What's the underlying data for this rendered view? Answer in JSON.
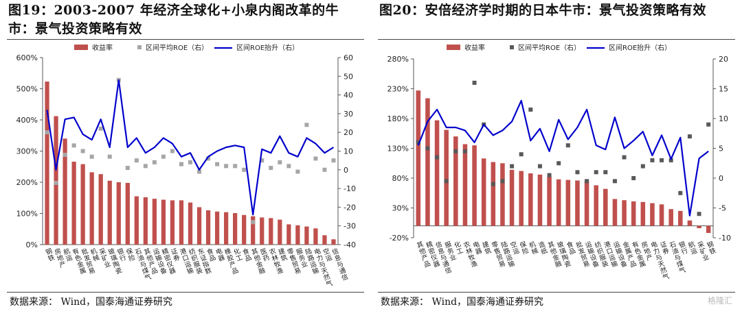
{
  "figures": [
    {
      "title": "图19：2003-2007 年经济全球化+小泉内阁改革的牛市：景气投资策略有效",
      "source": "数据来源： Wind，国泰海通证券研究"
    },
    {
      "title": "图20：安倍经济学时期的日本牛市：景气投资策略有效",
      "source": "数据来源： Wind，国泰海通证券研究"
    }
  ],
  "watermark": "格隆汇",
  "chart_data": [
    {
      "type": "bar",
      "legend": [
        "收益率",
        "区间平均ROE（右）",
        "区间ROE抬升（右）"
      ],
      "legend_position": "top",
      "colors": {
        "bar": "#C0504D",
        "scatter": "#A6A6A6",
        "line": "#0000CC"
      },
      "y_left": {
        "lim": [
          0,
          600
        ],
        "ticks": [
          "0%",
          "100%",
          "200%",
          "300%",
          "400%",
          "500%",
          "600%"
        ]
      },
      "y_right": {
        "lim": [
          -40,
          60
        ],
        "ticks": [
          "-40",
          "-30",
          "-20",
          "-10",
          "0",
          "10",
          "20",
          "30",
          "40",
          "50",
          "60"
        ]
      },
      "categories": [
        "钢铁",
        "房地产",
        "航运",
        "有色金属",
        "批发贸易",
        "机械",
        "采矿业",
        "玻璃陶瓷",
        "银行",
        "保险",
        "石油与煤气",
        "其他产品",
        "运输设备",
        "精密仪器",
        "证券",
        "港口运输",
        "纺织服装",
        "东证指数",
        "食品",
        "电器",
        "橡胶产品",
        "化工",
        "食品",
        "其他金融",
        "医药",
        "农林牧渔",
        "建筑",
        "零售贸易",
        "服务业",
        "陆路运输",
        "电力与天然气",
        "空运",
        "信息与通信"
      ],
      "series": [
        {
          "name": "收益率",
          "axis": "left",
          "values": [
            523,
            412,
            340,
            266,
            258,
            232,
            226,
            205,
            200,
            198,
            155,
            152,
            147,
            144,
            142,
            142,
            135,
            120,
            110,
            106,
            104,
            101,
            95,
            91,
            87,
            85,
            80,
            65,
            62,
            58,
            52,
            30,
            17
          ]
        },
        {
          "name": "区间平均ROE（右）",
          "axis": "right",
          "values": [
            20,
            -7,
            8,
            13,
            10,
            7,
            22,
            7,
            48,
            1,
            5,
            2,
            4,
            7,
            10,
            3,
            4,
            -1,
            6,
            3,
            2,
            2,
            0,
            -28,
            5,
            1,
            4,
            2,
            -1,
            24,
            6,
            0,
            5
          ]
        },
        {
          "name": "区间ROE抬升（右）",
          "axis": "right",
          "values": [
            32,
            0,
            27,
            28,
            19,
            16,
            27,
            12,
            48,
            12,
            17,
            9,
            12,
            17,
            14,
            7,
            9,
            0,
            7,
            10,
            12,
            13,
            12,
            -24,
            11,
            9,
            18,
            9,
            7,
            17,
            14,
            9,
            12
          ]
        }
      ]
    },
    {
      "type": "bar",
      "legend": [
        "收益率",
        "区间平均ROE（右）",
        "区间ROE抬升（右）"
      ],
      "legend_position": "top",
      "colors": {
        "bar": "#C0504D",
        "scatter": "#595959",
        "line": "#0000CC"
      },
      "y_left": {
        "lim": [
          -20,
          280
        ],
        "ticks": [
          "-20%",
          "30%",
          "80%",
          "130%",
          "180%",
          "230%",
          "280%"
        ]
      },
      "y_right": {
        "lim": [
          -10,
          20
        ],
        "ticks": [
          "-10",
          "-5",
          "0",
          "5",
          "10",
          "15",
          "20"
        ]
      },
      "categories": [
        "其他产品",
        "精密仪器",
        "信息与通信",
        "服务业",
        "化工",
        "农林牧渔",
        "电器",
        "建筑",
        "零售贸易",
        "陆路运输",
        "空运",
        "保险",
        "机械",
        "造纸",
        "其他金融",
        "玻璃陶瓷",
        "食品",
        "批发贸易",
        "运输设备",
        "纺织服装",
        "港口运输",
        "运输设备",
        "金属产品",
        "有色金属",
        "房地产",
        "电力与天然气",
        "证券",
        "石油与煤气",
        "银行",
        "航运",
        "采矿业",
        "钢铁"
      ],
      "series": [
        {
          "name": "收益率",
          "axis": "left",
          "values": [
            227,
            214,
            177,
            161,
            150,
            137,
            135,
            113,
            107,
            105,
            94,
            92,
            88,
            86,
            82,
            78,
            77,
            76,
            76,
            68,
            62,
            45,
            43,
            41,
            40,
            38,
            36,
            28,
            25,
            9,
            -4,
            -12
          ]
        },
        {
          "name": "区间平均ROE（右）",
          "axis": "right",
          "values": [
            6,
            5,
            3.5,
            -0.5,
            4.5,
            4.5,
            16,
            9,
            -1,
            -0.5,
            2,
            4,
            11.5,
            2,
            0.5,
            2.5,
            5.5,
            1,
            -0.5,
            1,
            1,
            -0.5,
            3.5,
            0,
            2,
            3,
            3,
            3,
            -2.5,
            7,
            -6,
            9
          ]
        },
        {
          "name": "区间ROE抬升（右）",
          "axis": "right",
          "values": [
            5.5,
            9.5,
            11.5,
            8.5,
            8.5,
            8,
            6,
            9,
            7.2,
            8,
            9.5,
            13,
            6.3,
            8.3,
            4.5,
            9.8,
            6.5,
            8.5,
            11.5,
            5.5,
            4.8,
            10.2,
            5,
            6.3,
            7.8,
            3.8,
            7.2,
            3.2,
            6.8,
            -6.3,
            3.3,
            4.5
          ]
        }
      ]
    }
  ]
}
